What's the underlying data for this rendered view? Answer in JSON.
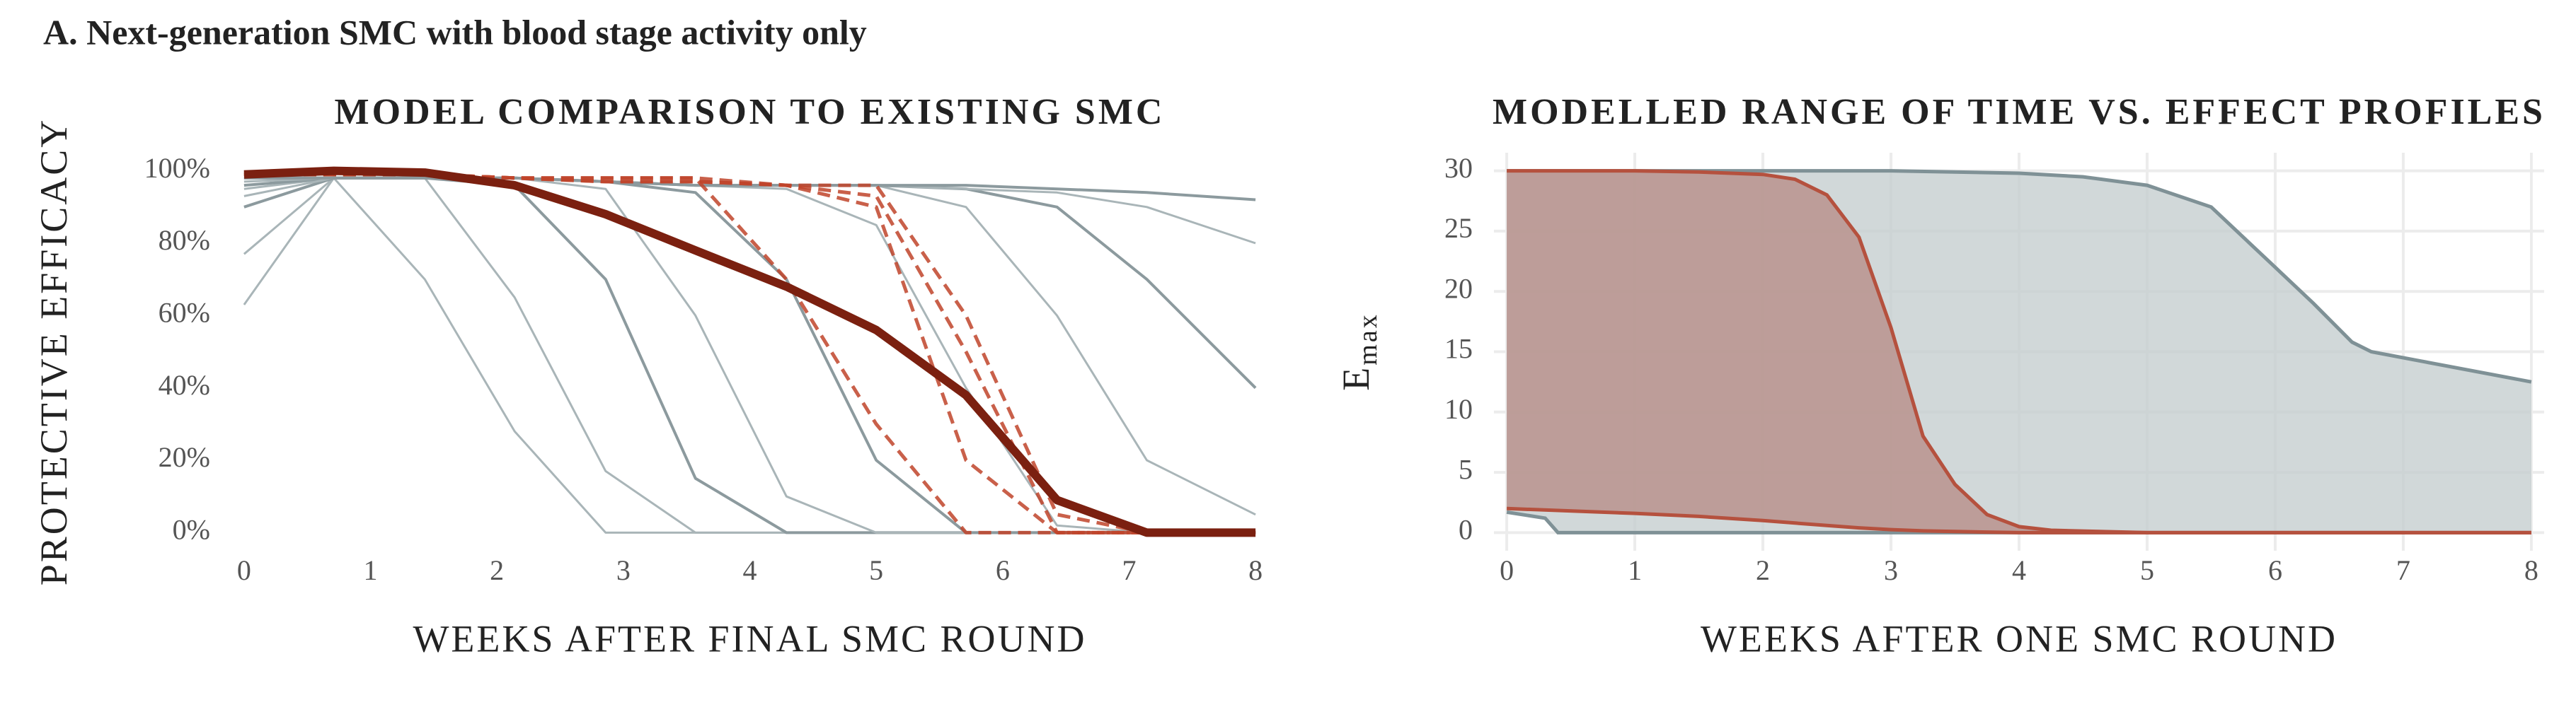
{
  "heading": "A. Next-generation SMC with blood stage activity only",
  "chart_data": [
    {
      "type": "line",
      "title": "MODEL COMPARISON TO EXISTING SMC",
      "x_label": "WEEKS AFTER FINAL SMC ROUND",
      "y_label": "PROTECTIVE EFFICACY",
      "x": [
        0,
        0.71,
        1.43,
        2.14,
        2.86,
        3.57,
        4.29,
        5,
        5.71,
        6.43,
        7.14,
        8
      ],
      "xlim": [
        -0.1,
        8.1
      ],
      "xticks": [
        0,
        1,
        2,
        3,
        4,
        5,
        6,
        7,
        8
      ],
      "ylim": [
        -5,
        105
      ],
      "yticks": [
        {
          "value": 0,
          "label": "0%"
        },
        {
          "value": 20,
          "label": "20%"
        },
        {
          "value": 40,
          "label": "40%"
        },
        {
          "value": 60,
          "label": "60%"
        },
        {
          "value": 80,
          "label": "80%"
        },
        {
          "value": 100,
          "label": "100%"
        }
      ],
      "grid": false,
      "series": [
        {
          "color": "#a9b5b8",
          "style": "solid",
          "width": 3,
          "values": [
            63,
            98,
            70,
            28,
            0,
            0,
            0,
            0,
            0,
            0,
            0,
            0
          ]
        },
        {
          "color": "#a9b5b8",
          "style": "solid",
          "width": 3,
          "values": [
            77,
            98,
            98,
            65,
            17,
            0,
            0,
            0,
            0,
            0,
            0,
            0
          ]
        },
        {
          "color": "#8c9a9e",
          "style": "solid",
          "width": 4,
          "values": [
            90,
            98,
            98,
            96,
            70,
            15,
            0,
            0,
            0,
            0,
            0,
            0
          ]
        },
        {
          "color": "#a9b5b8",
          "style": "solid",
          "width": 3,
          "values": [
            95,
            98,
            98,
            98,
            95,
            60,
            10,
            0,
            0,
            0,
            0,
            0
          ]
        },
        {
          "color": "#8c9a9e",
          "style": "solid",
          "width": 4,
          "values": [
            96,
            98,
            98,
            98,
            97,
            94,
            70,
            20,
            0,
            0,
            0,
            0
          ]
        },
        {
          "color": "#a9b5b8",
          "style": "solid",
          "width": 3,
          "values": [
            97,
            98,
            98,
            98,
            97,
            96,
            95,
            85,
            40,
            2,
            0,
            0
          ]
        },
        {
          "color": "#a9b5b8",
          "style": "solid",
          "width": 3,
          "values": [
            98,
            98,
            98,
            98,
            97,
            96,
            96,
            96,
            90,
            60,
            20,
            5
          ]
        },
        {
          "color": "#8c9a9e",
          "style": "solid",
          "width": 4,
          "values": [
            98,
            98,
            98,
            98,
            97,
            96,
            96,
            96,
            95,
            90,
            70,
            40
          ]
        },
        {
          "color": "#a9b5b8",
          "style": "solid",
          "width": 3,
          "values": [
            93,
            98,
            98,
            98,
            97,
            96,
            96,
            96,
            95,
            94,
            90,
            80
          ]
        },
        {
          "color": "#8c9a9e",
          "style": "solid",
          "width": 4,
          "values": [
            98,
            98,
            98,
            98,
            97,
            96,
            96,
            96,
            96,
            95,
            94,
            92
          ]
        },
        {
          "color": "#c0442a",
          "style": "dashed",
          "width": 5,
          "values": [
            99,
            99,
            99,
            98,
            97,
            97,
            96,
            90,
            20,
            0,
            0,
            0
          ]
        },
        {
          "color": "#c0442a",
          "style": "dashed",
          "width": 5,
          "values": [
            99,
            99,
            99,
            98,
            97,
            97,
            96,
            93,
            50,
            0,
            0,
            0
          ]
        },
        {
          "color": "#c0442a",
          "style": "dashed",
          "width": 5,
          "values": [
            99,
            99,
            99,
            98,
            98,
            98,
            70,
            30,
            0,
            0,
            0,
            0
          ]
        },
        {
          "color": "#c0442a",
          "style": "dashed",
          "width": 5,
          "values": [
            99,
            99,
            99,
            98,
            98,
            98,
            96,
            96,
            60,
            5,
            0,
            0
          ]
        },
        {
          "color": "#7b2010",
          "style": "solid",
          "width": 12,
          "values": [
            99,
            100,
            99.5,
            96,
            88,
            78,
            68,
            56,
            38,
            9,
            0,
            0
          ]
        }
      ]
    },
    {
      "type": "ribbon",
      "title": "MODELLED RANGE OF TIME VS. EFFECT PROFILES",
      "x_label": "WEEKS AFTER ONE SMC ROUND",
      "y_label": "E",
      "y_label_sub": "max",
      "xlim": [
        -0.1,
        8.1
      ],
      "xticks": [
        0,
        1,
        2,
        3,
        4,
        5,
        6,
        7,
        8
      ],
      "ylim": [
        -1.5,
        31.5
      ],
      "yticks": [
        0,
        5,
        10,
        15,
        20,
        25,
        30
      ],
      "grid": true,
      "series": [
        {
          "color": "#7f9196",
          "fill": "#c5ced0",
          "x": [
            0,
            0.3,
            0.4,
            1,
            2,
            3,
            4,
            4.5,
            5,
            5.5,
            6,
            6.3,
            6.6,
            6.75,
            8
          ],
          "upper": [
            30,
            30,
            30,
            30,
            30,
            30,
            29.8,
            29.5,
            28.8,
            27,
            22,
            19,
            15.8,
            15,
            12.5
          ],
          "lower": [
            1.7,
            1.2,
            0,
            0,
            0,
            0,
            0,
            0,
            0,
            0,
            0,
            0,
            0,
            0,
            0
          ]
        },
        {
          "color": "#b5513e",
          "fill": "#b88f88",
          "x": [
            0,
            1,
            1.5,
            2,
            2.25,
            2.5,
            2.75,
            3,
            3.25,
            3.5,
            3.75,
            4,
            4.25,
            5,
            8
          ],
          "upper": [
            30,
            30,
            29.9,
            29.7,
            29.3,
            28,
            24.5,
            17,
            8,
            4,
            1.5,
            0.5,
            0.2,
            0,
            0
          ],
          "lower": [
            2,
            1.6,
            1.35,
            1,
            0.8,
            0.6,
            0.4,
            0.25,
            0.15,
            0.1,
            0.05,
            0,
            0,
            0,
            0
          ]
        }
      ]
    }
  ]
}
